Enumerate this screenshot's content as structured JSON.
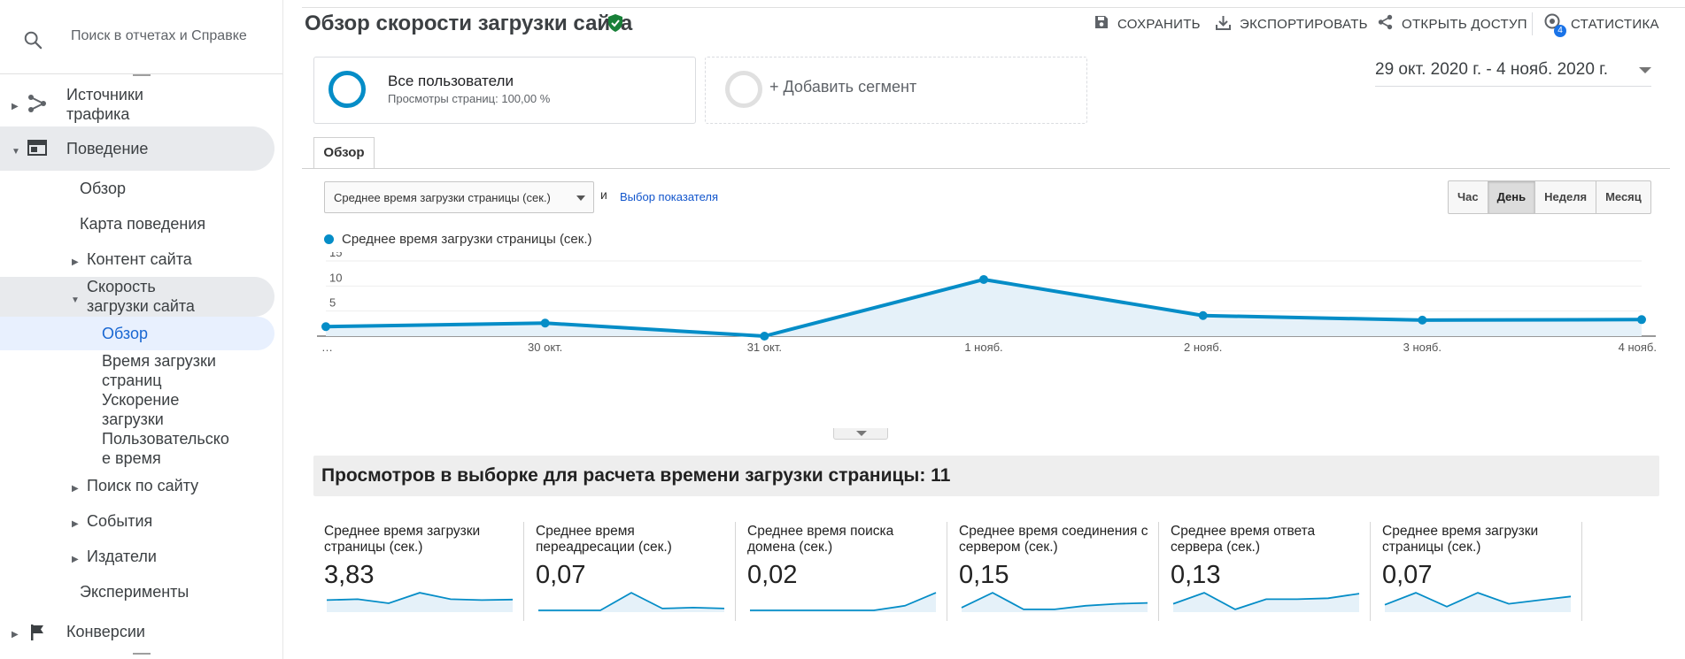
{
  "sidebar": {
    "search_placeholder": "Поиск в отчетах и Справке",
    "items": {
      "traffic_sources": "Источники\nтрафика",
      "behavior": "Поведение",
      "overview": "Обзор",
      "behavior_flow": "Карта поведения",
      "site_content": "Контент сайта",
      "site_speed": "Скорость\nзагрузки сайта",
      "speed_overview": "Обзор",
      "page_timings": "Время загрузки\nстраниц",
      "speed_suggestions": "Ускорение\nзагрузки",
      "user_timings": "Пользовательско\nе время",
      "site_search": "Поиск по сайту",
      "events": "События",
      "publisher": "Издатели",
      "experiments": "Эксперименты",
      "conversions": "Конверсии"
    }
  },
  "header": {
    "title": "Обзор скорости загрузки сайта",
    "save_label": "СОХРАНИТЬ",
    "export_label": "ЭКСПОРТИРОВАТЬ",
    "share_label": "ОТКРЫТЬ ДОСТУП",
    "insights_label": "СТАТИСТИКА",
    "insights_badge": "4"
  },
  "segments": {
    "active_name": "Все пользователи",
    "active_sub": "Просмотры страниц: 100,00 %",
    "add_label": "+ Добавить сегмент"
  },
  "date_range": "29 окт. 2020 г. - 4 нояб. 2020 г.",
  "tabs": {
    "overview": "Обзор"
  },
  "controls": {
    "metric_select": "Среднее время загрузки страницы (сек.)",
    "and_word": "и",
    "choose_metric": "Выбор показателя",
    "periods": {
      "hour": "Час",
      "day": "День",
      "week": "Неделя",
      "month": "Месяц"
    },
    "active_period": "День"
  },
  "chart_data": {
    "type": "area",
    "series_name": "Среднее время загрузки страницы (сек.)",
    "categories": [
      "…",
      "30 окт.",
      "31 окт.",
      "1 нояб.",
      "2 нояб.",
      "3 нояб.",
      "4 нояб."
    ],
    "values": [
      1.9,
      2.6,
      0.0,
      11.3,
      4.1,
      3.2,
      3.3
    ],
    "yticks": [
      5,
      10,
      15
    ],
    "ylim": [
      0,
      15
    ],
    "grid": true,
    "colors": {
      "line": "#058dc7",
      "fill": "#e5f1f9",
      "grid": "#eeeeee"
    }
  },
  "summary": {
    "label": "Просмотров в выборке для расчета времени загрузки страницы: 11"
  },
  "metrics": [
    {
      "label": "Среднее время загрузки страницы (сек.)",
      "value": "3,83",
      "spark": [
        0.55,
        0.6,
        0.38,
        0.95,
        0.6,
        0.55,
        0.58
      ]
    },
    {
      "label": "Среднее время переадресации (сек.)",
      "value": "0,07",
      "spark": [
        0.0,
        0.0,
        0.0,
        0.95,
        0.1,
        0.15,
        0.1
      ]
    },
    {
      "label": "Среднее время поиска домена (сек.)",
      "value": "0,02",
      "spark": [
        0.0,
        0.0,
        0.0,
        0.0,
        0.0,
        0.25,
        0.95
      ]
    },
    {
      "label": "Среднее время соединения с сервером (сек.)",
      "value": "0,15",
      "spark": [
        0.15,
        0.95,
        0.05,
        0.05,
        0.25,
        0.35,
        0.4
      ]
    },
    {
      "label": "Среднее время ответа сервера (сек.)",
      "value": "0,13",
      "spark": [
        0.35,
        0.95,
        0.05,
        0.6,
        0.6,
        0.65,
        0.9
      ]
    },
    {
      "label": "Среднее время загрузки страницы (сек.)",
      "value": "0,07",
      "spark": [
        0.3,
        0.95,
        0.2,
        0.95,
        0.35,
        0.55,
        0.75
      ]
    }
  ]
}
